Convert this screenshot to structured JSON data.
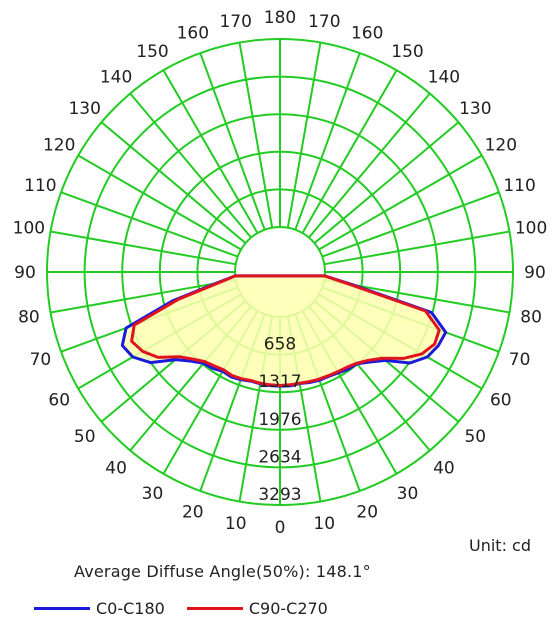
{
  "chart_data": {
    "type": "polar-line",
    "title": "",
    "angle_labels_left": [
      "0",
      "10",
      "20",
      "30",
      "40",
      "50",
      "60",
      "70",
      "80",
      "90",
      "100",
      "110",
      "120",
      "130",
      "140",
      "150",
      "160",
      "170",
      "180"
    ],
    "angle_labels_right": [
      "10",
      "20",
      "30",
      "40",
      "50",
      "60",
      "70",
      "80",
      "90",
      "100",
      "110",
      "120",
      "130",
      "140",
      "150",
      "160",
      "170"
    ],
    "ring_values": [
      658,
      1317,
      1976,
      2634,
      3293
    ],
    "rmax": 3293,
    "series": [
      {
        "name": "C0-C180",
        "color": "#1a1adc",
        "angles": [
          -85,
          -80,
          -75,
          -70,
          -65,
          -60,
          -55,
          -50,
          -45,
          -40,
          -35,
          -30,
          -25,
          -20,
          -15,
          -10,
          -5,
          0,
          5,
          10,
          15,
          20,
          25,
          30,
          35,
          40,
          45,
          50,
          55,
          60,
          65,
          70,
          75,
          80,
          85
        ],
        "values": [
          0,
          350,
          1150,
          2080,
          2260,
          2190,
          1980,
          1600,
          1420,
          1300,
          1270,
          1220,
          1240,
          1220,
          1190,
          1200,
          1210,
          1210,
          1215,
          1195,
          1215,
          1230,
          1230,
          1250,
          1290,
          1310,
          1440,
          1620,
          1990,
          2190,
          2270,
          2300,
          1960,
          520,
          0
        ]
      },
      {
        "name": "C90-C270",
        "color": "#e0141e",
        "angles": [
          -85,
          -80,
          -75,
          -70,
          -65,
          -60,
          -55,
          -50,
          -45,
          -40,
          -35,
          -30,
          -25,
          -20,
          -15,
          -10,
          -5,
          0,
          5,
          10,
          15,
          20,
          25,
          30,
          35,
          40,
          45,
          50,
          55,
          60,
          65,
          70,
          75,
          80,
          85
        ],
        "values": [
          0,
          300,
          1050,
          1930,
          2080,
          1990,
          1820,
          1520,
          1370,
          1260,
          1220,
          1190,
          1210,
          1200,
          1180,
          1190,
          1195,
          1200,
          1195,
          1190,
          1200,
          1210,
          1215,
          1230,
          1250,
          1300,
          1400,
          1560,
          1850,
          2080,
          2200,
          2180,
          1850,
          450,
          0
        ]
      }
    ]
  },
  "unit_text": "Unit: cd",
  "diffuse_text": "Average Diffuse Angle(50%): 148.1°",
  "legend": [
    {
      "label": "C0-C180",
      "color": "#1a1adc"
    },
    {
      "label": "C90-C270",
      "color": "#e0141e"
    }
  ],
  "colors": {
    "grid": "#22cc22",
    "fill": "#ffffb0"
  }
}
